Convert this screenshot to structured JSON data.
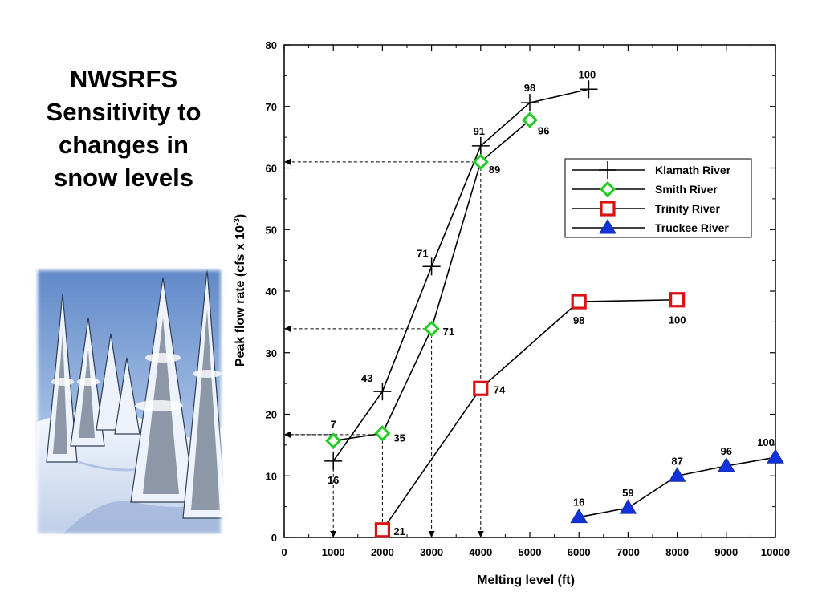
{
  "slide": {
    "title": "NWSRFS Sensitivity to changes in snow levels"
  },
  "photo": {
    "subject": "snow-covered evergreen trees"
  },
  "chart_data": {
    "type": "line",
    "xlabel": "Melting level (ft)",
    "ylabel_main": "Peak flow rate (cfs x 10",
    "ylabel_sup": "-3",
    "ylabel_tail": ")",
    "xlim": [
      0,
      10000
    ],
    "ylim": [
      0,
      80
    ],
    "x_ticks": [
      0,
      1000,
      2000,
      3000,
      4000,
      5000,
      6000,
      7000,
      8000,
      9000,
      10000
    ],
    "y_ticks": [
      0,
      10,
      20,
      30,
      40,
      50,
      60,
      70,
      80
    ],
    "grid": false,
    "legend_position": "right",
    "series": [
      {
        "name": "Klamath River",
        "marker": "plus",
        "color": "#000000",
        "points": [
          {
            "x": 1000,
            "y": 12.4,
            "label": "16"
          },
          {
            "x": 2000,
            "y": 23.7,
            "label": "43"
          },
          {
            "x": 3000,
            "y": 44.0,
            "label": "71"
          },
          {
            "x": 4000,
            "y": 63.6,
            "label": "91"
          },
          {
            "x": 5000,
            "y": 70.6,
            "label": "98"
          },
          {
            "x": 6200,
            "y": 72.8,
            "label": "100"
          }
        ]
      },
      {
        "name": "Smith River",
        "marker": "diamond",
        "color": "#22cc22",
        "points": [
          {
            "x": 1000,
            "y": 15.7,
            "label": "7"
          },
          {
            "x": 2000,
            "y": 16.9,
            "label": "35"
          },
          {
            "x": 3000,
            "y": 33.9,
            "label": "71"
          },
          {
            "x": 4000,
            "y": 61.0,
            "label": "89"
          },
          {
            "x": 5000,
            "y": 67.8,
            "label": "96"
          }
        ]
      },
      {
        "name": "Trinity River",
        "marker": "square",
        "color": "#dd1111",
        "points": [
          {
            "x": 2000,
            "y": 1.2,
            "label": "21"
          },
          {
            "x": 4000,
            "y": 24.2,
            "label": "74"
          },
          {
            "x": 6000,
            "y": 38.3,
            "label": "98"
          },
          {
            "x": 8000,
            "y": 38.6,
            "label": "100"
          }
        ]
      },
      {
        "name": "Truckee River",
        "marker": "triangle",
        "color": "#1133dd",
        "points": [
          {
            "x": 6000,
            "y": 3.3,
            "label": "16"
          },
          {
            "x": 7000,
            "y": 4.8,
            "label": "59"
          },
          {
            "x": 8000,
            "y": 10.0,
            "label": "87"
          },
          {
            "x": 9000,
            "y": 11.6,
            "label": "96"
          },
          {
            "x": 10000,
            "y": 13.0,
            "label": "100"
          }
        ]
      }
    ],
    "reference_lines": [
      {
        "x": 1000,
        "y": 16.7
      },
      {
        "x": 2000,
        "y": 16.7
      },
      {
        "x": 3000,
        "y": 33.9
      },
      {
        "x": 4000,
        "y": 61.0
      }
    ]
  }
}
